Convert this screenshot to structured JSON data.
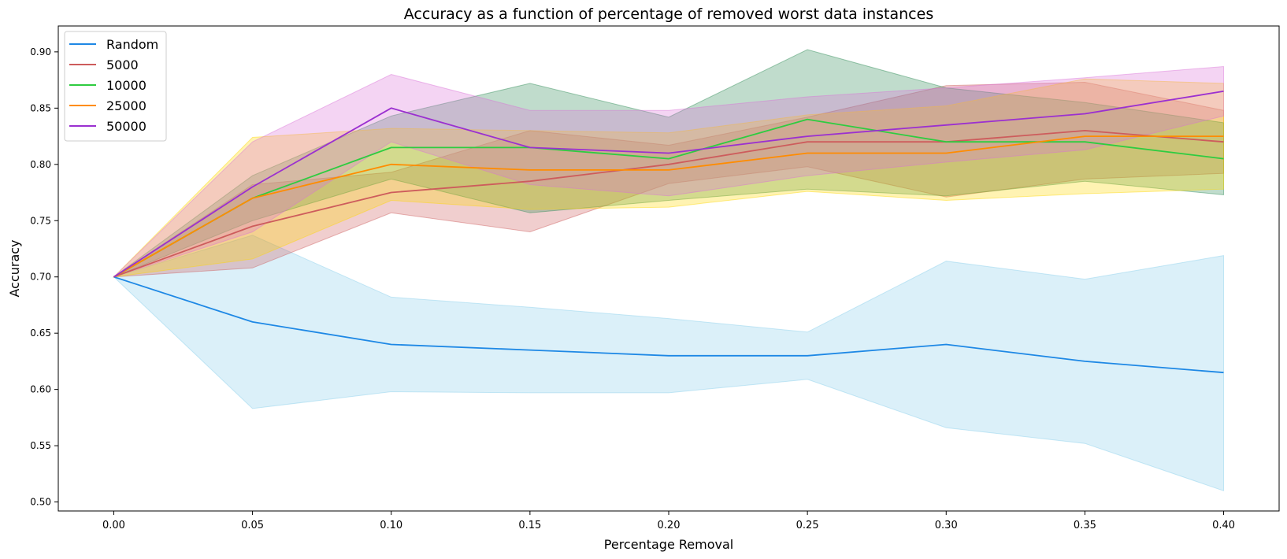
{
  "chart_data": {
    "type": "line",
    "title": "Accuracy as a function of percentage of removed worst data instances",
    "xlabel": "Percentage Removal",
    "ylabel": "Accuracy",
    "x": [
      0.0,
      0.05,
      0.1,
      0.15,
      0.2,
      0.25,
      0.3,
      0.35,
      0.4
    ],
    "x_tick_labels": [
      "0.00",
      "0.05",
      "0.10",
      "0.15",
      "0.20",
      "0.25",
      "0.30",
      "0.35",
      "0.40"
    ],
    "y_ticks": [
      0.5,
      0.55,
      0.6,
      0.65,
      0.7,
      0.75,
      0.8,
      0.85,
      0.9
    ],
    "y_tick_labels": [
      "0.50",
      "0.55",
      "0.60",
      "0.65",
      "0.70",
      "0.75",
      "0.80",
      "0.85",
      "0.90"
    ],
    "xlim": [
      -0.02,
      0.42
    ],
    "ylim": [
      0.492,
      0.923
    ],
    "grid": false,
    "legend_position": "top-left",
    "series": [
      {
        "name": "Random",
        "color": "#1e88e5",
        "band_color": "#87ceeb",
        "values": [
          0.7,
          0.66,
          0.64,
          0.635,
          0.63,
          0.63,
          0.64,
          0.625,
          0.615
        ],
        "lower": [
          0.7,
          0.583,
          0.598,
          0.597,
          0.597,
          0.609,
          0.566,
          0.552,
          0.51
        ],
        "upper": [
          0.7,
          0.737,
          0.682,
          0.673,
          0.663,
          0.651,
          0.714,
          0.698,
          0.719
        ]
      },
      {
        "name": "5000",
        "color": "#cd5c5c",
        "band_color": "#cd5c5c",
        "values": [
          0.7,
          0.745,
          0.775,
          0.785,
          0.8,
          0.82,
          0.82,
          0.83,
          0.82
        ],
        "lower": [
          0.7,
          0.708,
          0.757,
          0.74,
          0.783,
          0.798,
          0.771,
          0.787,
          0.792
        ],
        "upper": [
          0.7,
          0.782,
          0.793,
          0.83,
          0.817,
          0.842,
          0.87,
          0.873,
          0.848
        ]
      },
      {
        "name": "10000",
        "color": "#2ecc40",
        "band_color": "#2e8b57",
        "values": [
          0.7,
          0.77,
          0.815,
          0.815,
          0.805,
          0.84,
          0.82,
          0.82,
          0.805
        ],
        "lower": [
          0.7,
          0.75,
          0.787,
          0.757,
          0.768,
          0.778,
          0.772,
          0.785,
          0.773
        ],
        "upper": [
          0.7,
          0.79,
          0.843,
          0.872,
          0.842,
          0.902,
          0.868,
          0.855,
          0.837
        ]
      },
      {
        "name": "25000",
        "color": "#ff8c00",
        "band_color": "#ffd700",
        "values": [
          0.7,
          0.77,
          0.8,
          0.795,
          0.795,
          0.81,
          0.81,
          0.825,
          0.825
        ],
        "lower": [
          0.7,
          0.716,
          0.768,
          0.76,
          0.762,
          0.776,
          0.768,
          0.774,
          0.778
        ],
        "upper": [
          0.7,
          0.824,
          0.832,
          0.83,
          0.828,
          0.844,
          0.852,
          0.876,
          0.872
        ]
      },
      {
        "name": "50000",
        "color": "#9b30d0",
        "band_color": "#da70d6",
        "values": [
          0.7,
          0.78,
          0.85,
          0.815,
          0.81,
          0.825,
          0.835,
          0.845,
          0.865
        ],
        "lower": [
          0.7,
          0.74,
          0.82,
          0.782,
          0.772,
          0.79,
          0.802,
          0.813,
          0.843
        ],
        "upper": [
          0.7,
          0.82,
          0.88,
          0.848,
          0.848,
          0.86,
          0.868,
          0.877,
          0.887
        ]
      }
    ]
  }
}
